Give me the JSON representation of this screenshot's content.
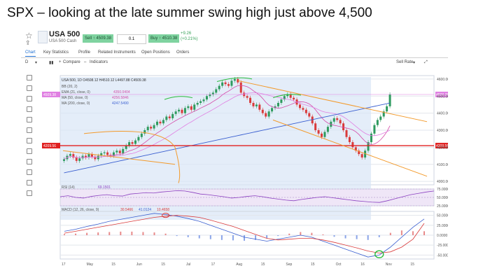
{
  "slide_title": "SPX – looking at the late summer swing high just above 4,500",
  "header": {
    "instrument": "USA 500",
    "subtitle": "USA 500 Cash",
    "sell": "Sell ↑ 4509.38",
    "qty": "0.1",
    "buy": "Buy ↑ 4510.38",
    "change": "+9.26",
    "change_pct": "(+0.21%)"
  },
  "tabs": [
    "Chart",
    "Key Statistics",
    "Profile",
    "Related Instruments",
    "Open Positions",
    "Orders"
  ],
  "toolbar": {
    "interval": "D",
    "compare": "Compare",
    "indicators": "Indicators",
    "sell_rate": "Sell Rate"
  },
  "legend": {
    "ohlc": "USA 500, 1D  O4508.12  H4510.12  L4497.88  C4509.38",
    "bb": "BB (20, 2)",
    "ema": "EMA (21, close, 0)",
    "ema_val": "4350.0404",
    "ma50": "MA (50, close, 0)",
    "ma50_val": "4256.5846",
    "ma200": "MA (200, close, 0)",
    "ma200_val": "4247.5490",
    "rsi": "RSI (14)",
    "rsi_val": "69.1501",
    "macd": "MACD (12, 26, close, 9)",
    "macd_vals": [
      "30.5466",
      "41.0124",
      "10.4658"
    ]
  },
  "price_badges": {
    "last": "4509.38",
    "level": "4209.56"
  },
  "colors": {
    "up": "#2e9a5e",
    "down": "#d93a3a",
    "ema": "#d44aa8",
    "ma50": "#e07fe2",
    "ma200": "#3a5fd0",
    "channel": "#f39a2b",
    "support": "#e02020"
  },
  "chart_data": [
    {
      "type": "candlestick",
      "title": "USA 500, 1D",
      "ylim": [
        3980,
        4620
      ],
      "y_ticks": [
        "4600.00",
        "4500.00",
        "4400.00",
        "4300.00",
        "4200.00",
        "4100.00",
        "4000.00"
      ],
      "x_ticks": [
        "17",
        "May",
        "15",
        "Jun",
        "15",
        "Jul",
        "17",
        "Aug",
        "15",
        "Sep",
        "15",
        "Oct",
        "16",
        "Nov",
        "15"
      ],
      "support_level": 4209.56,
      "last_price": 4509.38,
      "close": [
        4130,
        4150,
        4160,
        4140,
        4120,
        4135,
        4150,
        4140,
        4160,
        4145,
        4130,
        4150,
        4165,
        4170,
        4155,
        4150,
        4170,
        4180,
        4165,
        4190,
        4210,
        4230,
        4220,
        4240,
        4260,
        4280,
        4300,
        4320,
        4310,
        4330,
        4350,
        4340,
        4360,
        4380,
        4370,
        4395,
        4410,
        4420,
        4400,
        4430,
        4440,
        4420,
        4450,
        4460,
        4470,
        4480,
        4500,
        4510,
        4520,
        4540,
        4560,
        4580,
        4570,
        4560,
        4590,
        4600,
        4580,
        4520,
        4500,
        4490,
        4460,
        4440,
        4450,
        4420,
        4400,
        4380,
        4410,
        4430,
        4440,
        4460,
        4480,
        4500,
        4510,
        4490,
        4480,
        4450,
        4430,
        4420,
        4400,
        4380,
        4340,
        4300,
        4280,
        4260,
        4290,
        4320,
        4350,
        4370,
        4360,
        4340,
        4300,
        4260,
        4230,
        4200,
        4180,
        4160,
        4140,
        4180,
        4230,
        4280,
        4330,
        4360,
        4380,
        4410,
        4440,
        4510
      ]
    },
    {
      "type": "line",
      "title": "RSI (14)",
      "ylim": [
        25,
        75
      ],
      "y_ticks": [
        "75.0000",
        "50.0000",
        "25.0000"
      ],
      "values": [
        52,
        55,
        50,
        48,
        53,
        56,
        58,
        55,
        54,
        60,
        62,
        64,
        63,
        66,
        68,
        70,
        69,
        65,
        60,
        58,
        55,
        52,
        48,
        50,
        53,
        55,
        52,
        48,
        45,
        42,
        40,
        44,
        47,
        50,
        52,
        49,
        46,
        43,
        40,
        38,
        36,
        35,
        40,
        46,
        52,
        58,
        62,
        66,
        69
      ]
    },
    {
      "type": "bar",
      "title": "MACD (12, 26, close, 9)",
      "ylim": [
        -60,
        60
      ],
      "y_ticks": [
        "50.0000",
        "25.0000",
        "0.0000",
        "-25.0000",
        "-50.0000"
      ],
      "macd": [
        10,
        15,
        22,
        28,
        35,
        40,
        45,
        50,
        55,
        52,
        48,
        42,
        35,
        25,
        15,
        5,
        -5,
        -10,
        -15,
        -10,
        -5,
        0,
        -5,
        -15,
        -25,
        -35,
        -45,
        -55,
        -50,
        -30,
        -5,
        20,
        41
      ],
      "signal": [
        5,
        10,
        15,
        20,
        25,
        30,
        35,
        40,
        45,
        48,
        50,
        48,
        45,
        38,
        30,
        22,
        12,
        2,
        -8,
        -12,
        -10,
        -8,
        -8,
        -12,
        -18,
        -25,
        -32,
        -40,
        -45,
        -42,
        -30,
        -10,
        30
      ],
      "hist": [
        3,
        4,
        6,
        7,
        8,
        9,
        9,
        8,
        7,
        4,
        -2,
        -5,
        -8,
        -10,
        -12,
        -13,
        -14,
        -12,
        -8,
        -2,
        4,
        8,
        6,
        2,
        -4,
        -8,
        -10,
        -12,
        -5,
        6,
        12,
        10,
        10
      ]
    }
  ]
}
